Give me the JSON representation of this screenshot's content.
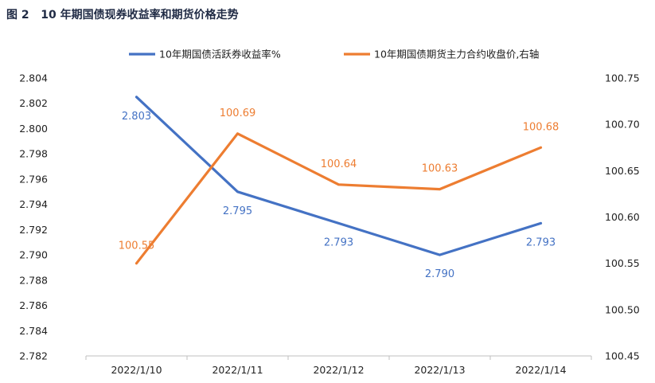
{
  "figure": {
    "title": "图 2   10 年期国债现券收益率和期货价格走势"
  },
  "chart_data": {
    "type": "line",
    "categories": [
      "2022/1/10",
      "2022/1/11",
      "2022/1/12",
      "2022/1/13",
      "2022/1/14"
    ],
    "left_axis": {
      "ylim": [
        2.782,
        2.804
      ],
      "ticks": [
        "2.782",
        "2.784",
        "2.786",
        "2.788",
        "2.790",
        "2.792",
        "2.794",
        "2.796",
        "2.798",
        "2.800",
        "2.802",
        "2.804"
      ]
    },
    "right_axis": {
      "ylim": [
        100.45,
        100.75
      ],
      "ticks": [
        "100.45",
        "100.50",
        "100.55",
        "100.60",
        "100.65",
        "100.70",
        "100.75"
      ]
    },
    "legend_position": "top",
    "grid": false,
    "series": [
      {
        "name": "10年期国债活跃券收益率%",
        "axis": "left",
        "color": "#4472c4",
        "values": [
          2.8025,
          2.795,
          2.7925,
          2.79,
          2.7925
        ],
        "labels": [
          "2.803",
          "2.795",
          "2.793",
          "2.790",
          "2.793"
        ]
      },
      {
        "name": "10年期国债期货主力合约收盘价,右轴",
        "axis": "right",
        "color": "#ed7d31",
        "values": [
          100.55,
          100.69,
          100.635,
          100.63,
          100.675
        ],
        "labels": [
          "100.55",
          "100.69",
          "100.64",
          "100.63",
          "100.68"
        ]
      }
    ]
  }
}
